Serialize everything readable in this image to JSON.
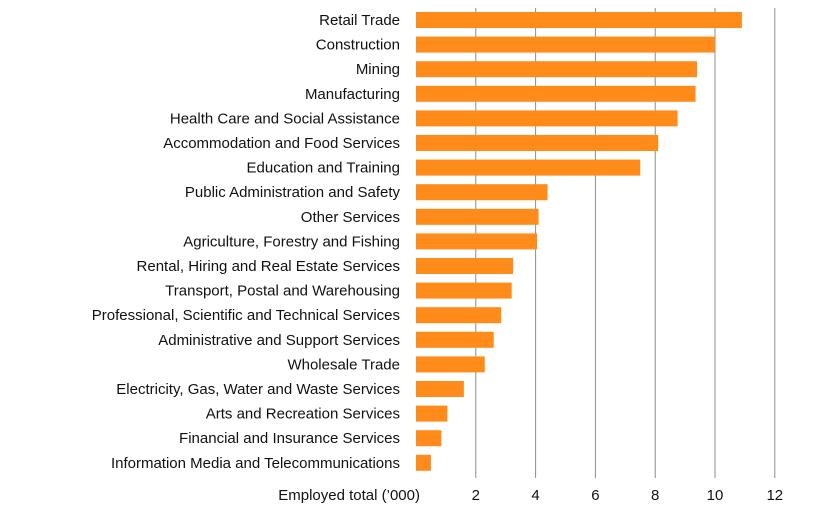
{
  "chart_data": {
    "type": "bar",
    "orientation": "horizontal",
    "title": "",
    "xlabel": "Employed total (’000)",
    "ylabel": "",
    "categories": [
      "Retail Trade",
      "Construction",
      "Mining",
      "Manufacturing",
      "Health Care and Social Assistance",
      "Accommodation and Food Services",
      "Education and Training",
      "Public Administration and Safety",
      "Other Services",
      "Agriculture, Forestry and Fishing",
      "Rental, Hiring and Real Estate Services",
      "Transport, Postal and Warehousing",
      "Professional, Scientific and Technical Services",
      "Administrative and Support Services",
      "Wholesale Trade",
      "Electricity, Gas, Water and Waste Services",
      "Arts and Recreation Services",
      "Financial and Insurance Services",
      "Information Media and Telecommunications"
    ],
    "values": [
      10.9,
      10.0,
      9.4,
      9.35,
      8.75,
      8.1,
      7.5,
      4.4,
      4.1,
      4.05,
      3.25,
      3.2,
      2.85,
      2.6,
      2.3,
      1.6,
      1.05,
      0.85,
      0.5
    ],
    "xlim": [
      0,
      12
    ],
    "x_ticks": [
      2,
      4,
      6,
      8,
      10,
      12
    ],
    "grid": "vertical",
    "colors": {
      "bar": "#ff8c1a",
      "grid": "#8c8c8c",
      "text": "#111111"
    }
  }
}
